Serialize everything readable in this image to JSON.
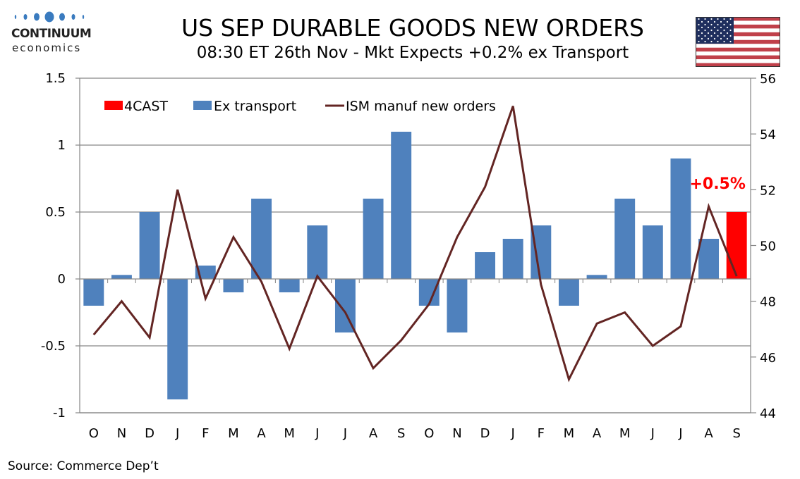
{
  "header": {
    "logo_name": "CONTINUUM",
    "logo_sub": "economics",
    "title": "US SEP DURABLE GOODS NEW ORDERS",
    "subtitle": "08:30 ET 26th Nov - Mkt Expects +0.2% ex Transport",
    "flag_icon": "us-flag-icon"
  },
  "footer": {
    "source": "Source: Commerce Dep’t"
  },
  "colors": {
    "forecast": "#ff0000",
    "ex_transport": "#4f81bd",
    "ism": "#632523",
    "grid": "#868686",
    "logo_blue": "#3a7bbf"
  },
  "chart_data": {
    "type": "bar",
    "title": "US SEP DURABLE GOODS NEW ORDERS",
    "subtitle": "08:30 ET 26th Nov - Mkt Expects +0.2% ex Transport",
    "categories": [
      "O",
      "N",
      "D",
      "J",
      "F",
      "M",
      "A",
      "M",
      "J",
      "J",
      "A",
      "S",
      "O",
      "N",
      "D",
      "J",
      "F",
      "M",
      "A",
      "M",
      "J",
      "J",
      "A",
      "S"
    ],
    "series": [
      {
        "name": "4CAST",
        "type": "bar",
        "axis": "left",
        "values": [
          null,
          null,
          null,
          null,
          null,
          null,
          null,
          null,
          null,
          null,
          null,
          null,
          null,
          null,
          null,
          null,
          null,
          null,
          null,
          null,
          null,
          null,
          null,
          0.5
        ]
      },
      {
        "name": "Ex transport",
        "type": "bar",
        "axis": "left",
        "values": [
          -0.2,
          0.03,
          0.5,
          -0.9,
          0.1,
          -0.1,
          0.6,
          -0.1,
          0.4,
          -0.4,
          0.6,
          1.1,
          -0.2,
          -0.4,
          0.2,
          0.3,
          0.4,
          -0.2,
          0.03,
          0.6,
          0.4,
          0.9,
          0.3,
          null
        ]
      },
      {
        "name": "ISM manuf new orders",
        "type": "line",
        "axis": "right",
        "values": [
          46.8,
          48.0,
          46.7,
          52.0,
          48.1,
          50.3,
          48.7,
          46.3,
          48.9,
          47.6,
          45.6,
          46.6,
          47.9,
          50.3,
          52.1,
          55.0,
          48.6,
          45.2,
          47.2,
          47.6,
          46.4,
          47.1,
          51.4,
          48.9
        ]
      }
    ],
    "y_left": {
      "range": [
        -1,
        1.5
      ],
      "ticks": [
        "-1",
        "-0.5",
        "0",
        "0.5",
        "1",
        "1.5"
      ],
      "tick_values": [
        -1,
        -0.5,
        0,
        0.5,
        1,
        1.5
      ]
    },
    "y_right": {
      "range": [
        44,
        56
      ],
      "ticks": [
        "44",
        "46",
        "48",
        "50",
        "52",
        "54",
        "56"
      ],
      "tick_values": [
        44,
        46,
        48,
        50,
        52,
        54,
        56
      ]
    },
    "grid": true,
    "legend": {
      "position": "top-left",
      "entries": [
        "4CAST",
        "Ex transport",
        "ISM manuf new orders"
      ]
    },
    "annotations": [
      {
        "text": "+0.5%",
        "category_index": 23
      }
    ],
    "xlabel": "",
    "ylabel": ""
  }
}
